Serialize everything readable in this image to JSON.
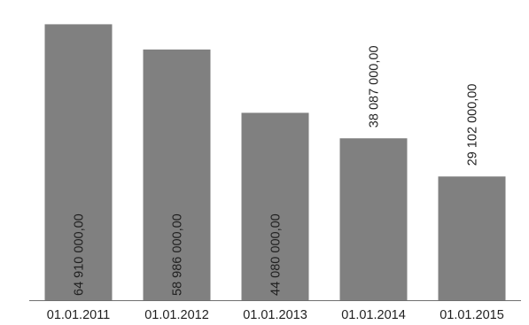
{
  "chart_data": {
    "type": "bar",
    "categories": [
      "01.01.2011",
      "01.01.2012",
      "01.01.2013",
      "01.01.2014",
      "01.01.2015"
    ],
    "values": [
      64910000,
      58986000,
      44080000,
      38087000,
      29102000
    ],
    "data_labels": [
      "64 910 000,00",
      "58 986 000,00",
      "44 080 000,00",
      "38 087 000,00",
      "29 102 000,00"
    ],
    "data_label_position": [
      "inside",
      "inside",
      "inside",
      "above",
      "above"
    ],
    "ylim": [
      0,
      65000000
    ],
    "grid": false,
    "legend": "none",
    "colors": {
      "bar": "#808080",
      "axis": "#707070",
      "text": "#1f1f1f"
    }
  }
}
